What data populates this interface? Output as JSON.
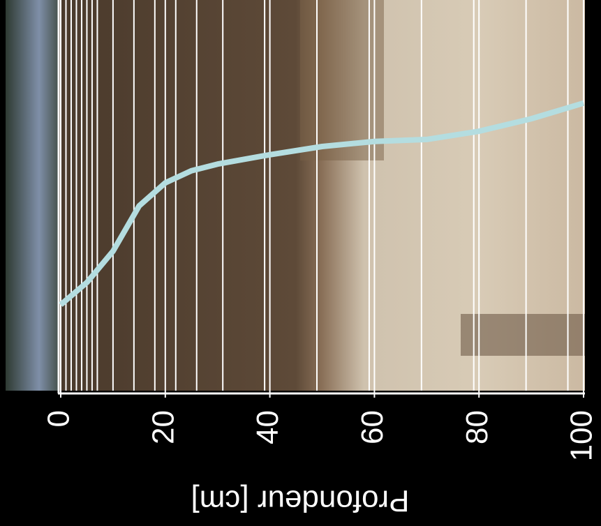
{
  "chart_data": {
    "type": "line",
    "xlabel": "Profondeur [cm]",
    "x": [
      0,
      5,
      10,
      15,
      20,
      25,
      30,
      40,
      50,
      60,
      70,
      80,
      90,
      100
    ],
    "series": [
      {
        "color": "#b4dde0",
        "values": [
          22,
          27.7,
          35.7,
          47.3,
          53.2,
          56.3,
          58,
          60.4,
          62.5,
          63.8,
          64.3,
          66.4,
          69.6,
          73.6
        ]
      }
    ],
    "layer_boundaries": [
      1,
      2,
      3,
      4,
      5,
      6,
      7,
      10,
      14,
      18,
      22,
      26,
      31,
      39,
      49,
      59,
      69,
      79,
      89,
      97
    ],
    "xlim": [
      0,
      100
    ],
    "ylim": [
      0,
      100
    ],
    "xticks": [
      0,
      20,
      40,
      60,
      80,
      100
    ]
  }
}
